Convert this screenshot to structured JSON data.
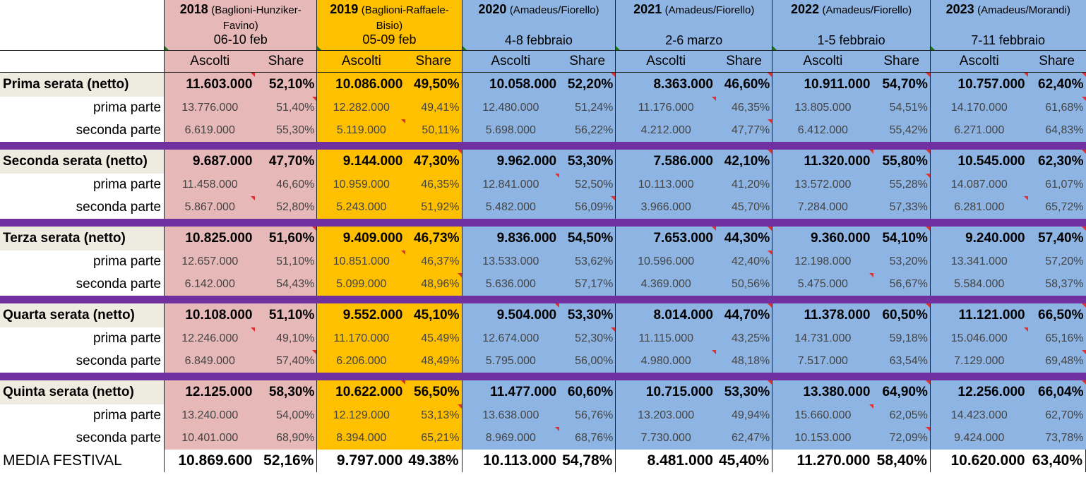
{
  "header": {
    "years": [
      {
        "year": "2018",
        "hosts": "(Baglioni-Hunziker-Favino)",
        "dates": "06-10 feb"
      },
      {
        "year": "2019",
        "hosts": "(Baglioni-Raffaele-Bisio)",
        "dates": "05-09 feb"
      },
      {
        "year": "2020",
        "hosts": "(Amadeus/Fiorello)",
        "dates": "4-8 febbraio"
      },
      {
        "year": "2021",
        "hosts": "(Amadeus/Fiorello)",
        "dates": "2-6 marzo"
      },
      {
        "year": "2022",
        "hosts": "(Amadeus/Fiorello)",
        "dates": "1-5 febbraio"
      },
      {
        "year": "2023",
        "hosts": "(Amadeus/Morandi)",
        "dates": "7-11 febbraio"
      }
    ],
    "col_ascolti": "Ascolti",
    "col_share": "Share"
  },
  "rows": [
    {
      "label": "Prima serata (netto)",
      "values": [
        "11.603.000",
        "52,10%",
        "10.086.000",
        "49,50%",
        "10.058.000",
        "52,20%",
        "8.363.000",
        "46,60%",
        "10.911.000",
        "54,70%",
        "10.757.000",
        "62,40%"
      ]
    },
    {
      "label": "prima parte",
      "values": [
        "13.776.000",
        "51,40%",
        "12.282.000",
        "49,41%",
        "12.480.000",
        "51,24%",
        "11.176.000",
        "46,35%",
        "13.805.000",
        "54,51%",
        "14.170.000",
        "61,68%"
      ]
    },
    {
      "label": "seconda parte",
      "values": [
        "6.619.000",
        "55,30%",
        "5.119.000",
        "50,11%",
        "5.698.000",
        "56,22%",
        "4.212.000",
        "47,77%",
        "6.412.000",
        "55,42%",
        "6.271.000",
        "64,83%"
      ]
    },
    {
      "label": "Seconda serata (netto)",
      "values": [
        "9.687.000",
        "47,70%",
        "9.144.000",
        "47,30%",
        "9.962.000",
        "53,30%",
        "7.586.000",
        "42,10%",
        "11.320.000",
        "55,80%",
        "10.545.000",
        "62,30%"
      ]
    },
    {
      "label": "prima parte",
      "values": [
        "11.458.000",
        "46,60%",
        "10.959.000",
        "46,35%",
        "12.841.000",
        "52,50%",
        "10.113.000",
        "41,20%",
        "13.572.000",
        "55,28%",
        "14.087.000",
        "61,07%"
      ]
    },
    {
      "label": "seconda parte",
      "values": [
        "5.867.000",
        "52,80%",
        "5.243.000",
        "51,92%",
        "5.482.000",
        "56,09%",
        "3.966.000",
        "45,70%",
        "7.284.000",
        "57,33%",
        "6.281.000",
        "65,72%"
      ]
    },
    {
      "label": "Terza serata (netto)",
      "values": [
        "10.825.000",
        "51,60%",
        "9.409.000",
        "46,73%",
        "9.836.000",
        "54,50%",
        "7.653.000",
        "44,30%",
        "9.360.000",
        "54,10%",
        "9.240.000",
        "57,40%"
      ]
    },
    {
      "label": "prima parte",
      "values": [
        "12.657.000",
        "51,10%",
        "10.851.000",
        "46,37%",
        "13.533.000",
        "53,62%",
        "10.596.000",
        "42,40%",
        "12.198.000",
        "53,20%",
        "13.341.000",
        "57,20%"
      ]
    },
    {
      "label": "seconda parte",
      "values": [
        "6.142.000",
        "54,43%",
        "5.099.000",
        "48,96%",
        "5.636.000",
        "57,17%",
        "4.369.000",
        "50,56%",
        "5.475.000",
        "56,67%",
        "5.584.000",
        "58,37%"
      ]
    },
    {
      "label": "Quarta serata (netto)",
      "values": [
        "10.108.000",
        "51,10%",
        "9.552.000",
        "45,10%",
        "9.504.000",
        "53,30%",
        "8.014.000",
        "44,70%",
        "11.378.000",
        "60,50%",
        "11.121.000",
        "66,50%"
      ]
    },
    {
      "label": "prima parte",
      "values": [
        "12.246.000",
        "49,10%",
        "11.170.000",
        "45.49%",
        "12.674.000",
        "52,30%",
        "11.115.000",
        "43,25%",
        "14.731.000",
        "59,18%",
        "15.046.000",
        "65,16%"
      ]
    },
    {
      "label": "seconda parte",
      "values": [
        "6.849.000",
        "57,40%",
        "6.206.000",
        "48,49%",
        "5.795.000",
        "56,00%",
        "4.980.000",
        "48,18%",
        "7.517.000",
        "63,54%",
        "7.129.000",
        "69,48%"
      ]
    },
    {
      "label": "Quinta serata (netto)",
      "values": [
        "12.125.000",
        "58,30%",
        "10.622.000",
        "56,50%",
        "11.477.000",
        "60,60%",
        "10.715.000",
        "53,30%",
        "13.380.000",
        "64,90%",
        "12.256.000",
        "66,04%"
      ]
    },
    {
      "label": "prima parte",
      "values": [
        "13.240.000",
        "54,00%",
        "12.129.000",
        "53,13%",
        "13.638.000",
        "56,76%",
        "13.203.000",
        "49,94%",
        "15.660.000",
        "62,05%",
        "14.423.000",
        "62,70%"
      ]
    },
    {
      "label": "seconda parte",
      "values": [
        "10.401.000",
        "68,90%",
        "8.394.000",
        "65,21%",
        "8.969.000",
        "68,76%",
        "7.730.000",
        "62,47%",
        "10.153.000",
        "72,09%",
        "9.424.000",
        "73,78%"
      ]
    }
  ],
  "media": {
    "label": "MEDIA FESTIVAL",
    "values": [
      "10.869.600",
      "52,16%",
      "9.797.000",
      "49.38%",
      "10.113.000",
      "54,78%",
      "8.481.000",
      "45,40%",
      "11.270.000",
      "58,40%",
      "10.620.000",
      "63,40%"
    ]
  },
  "colors": {
    "y2018": "#e6b8b7",
    "y2019": "#ffc000",
    "blue": "#8db4e2",
    "separator": "#7030a0",
    "label_bg": "#eeece1"
  }
}
